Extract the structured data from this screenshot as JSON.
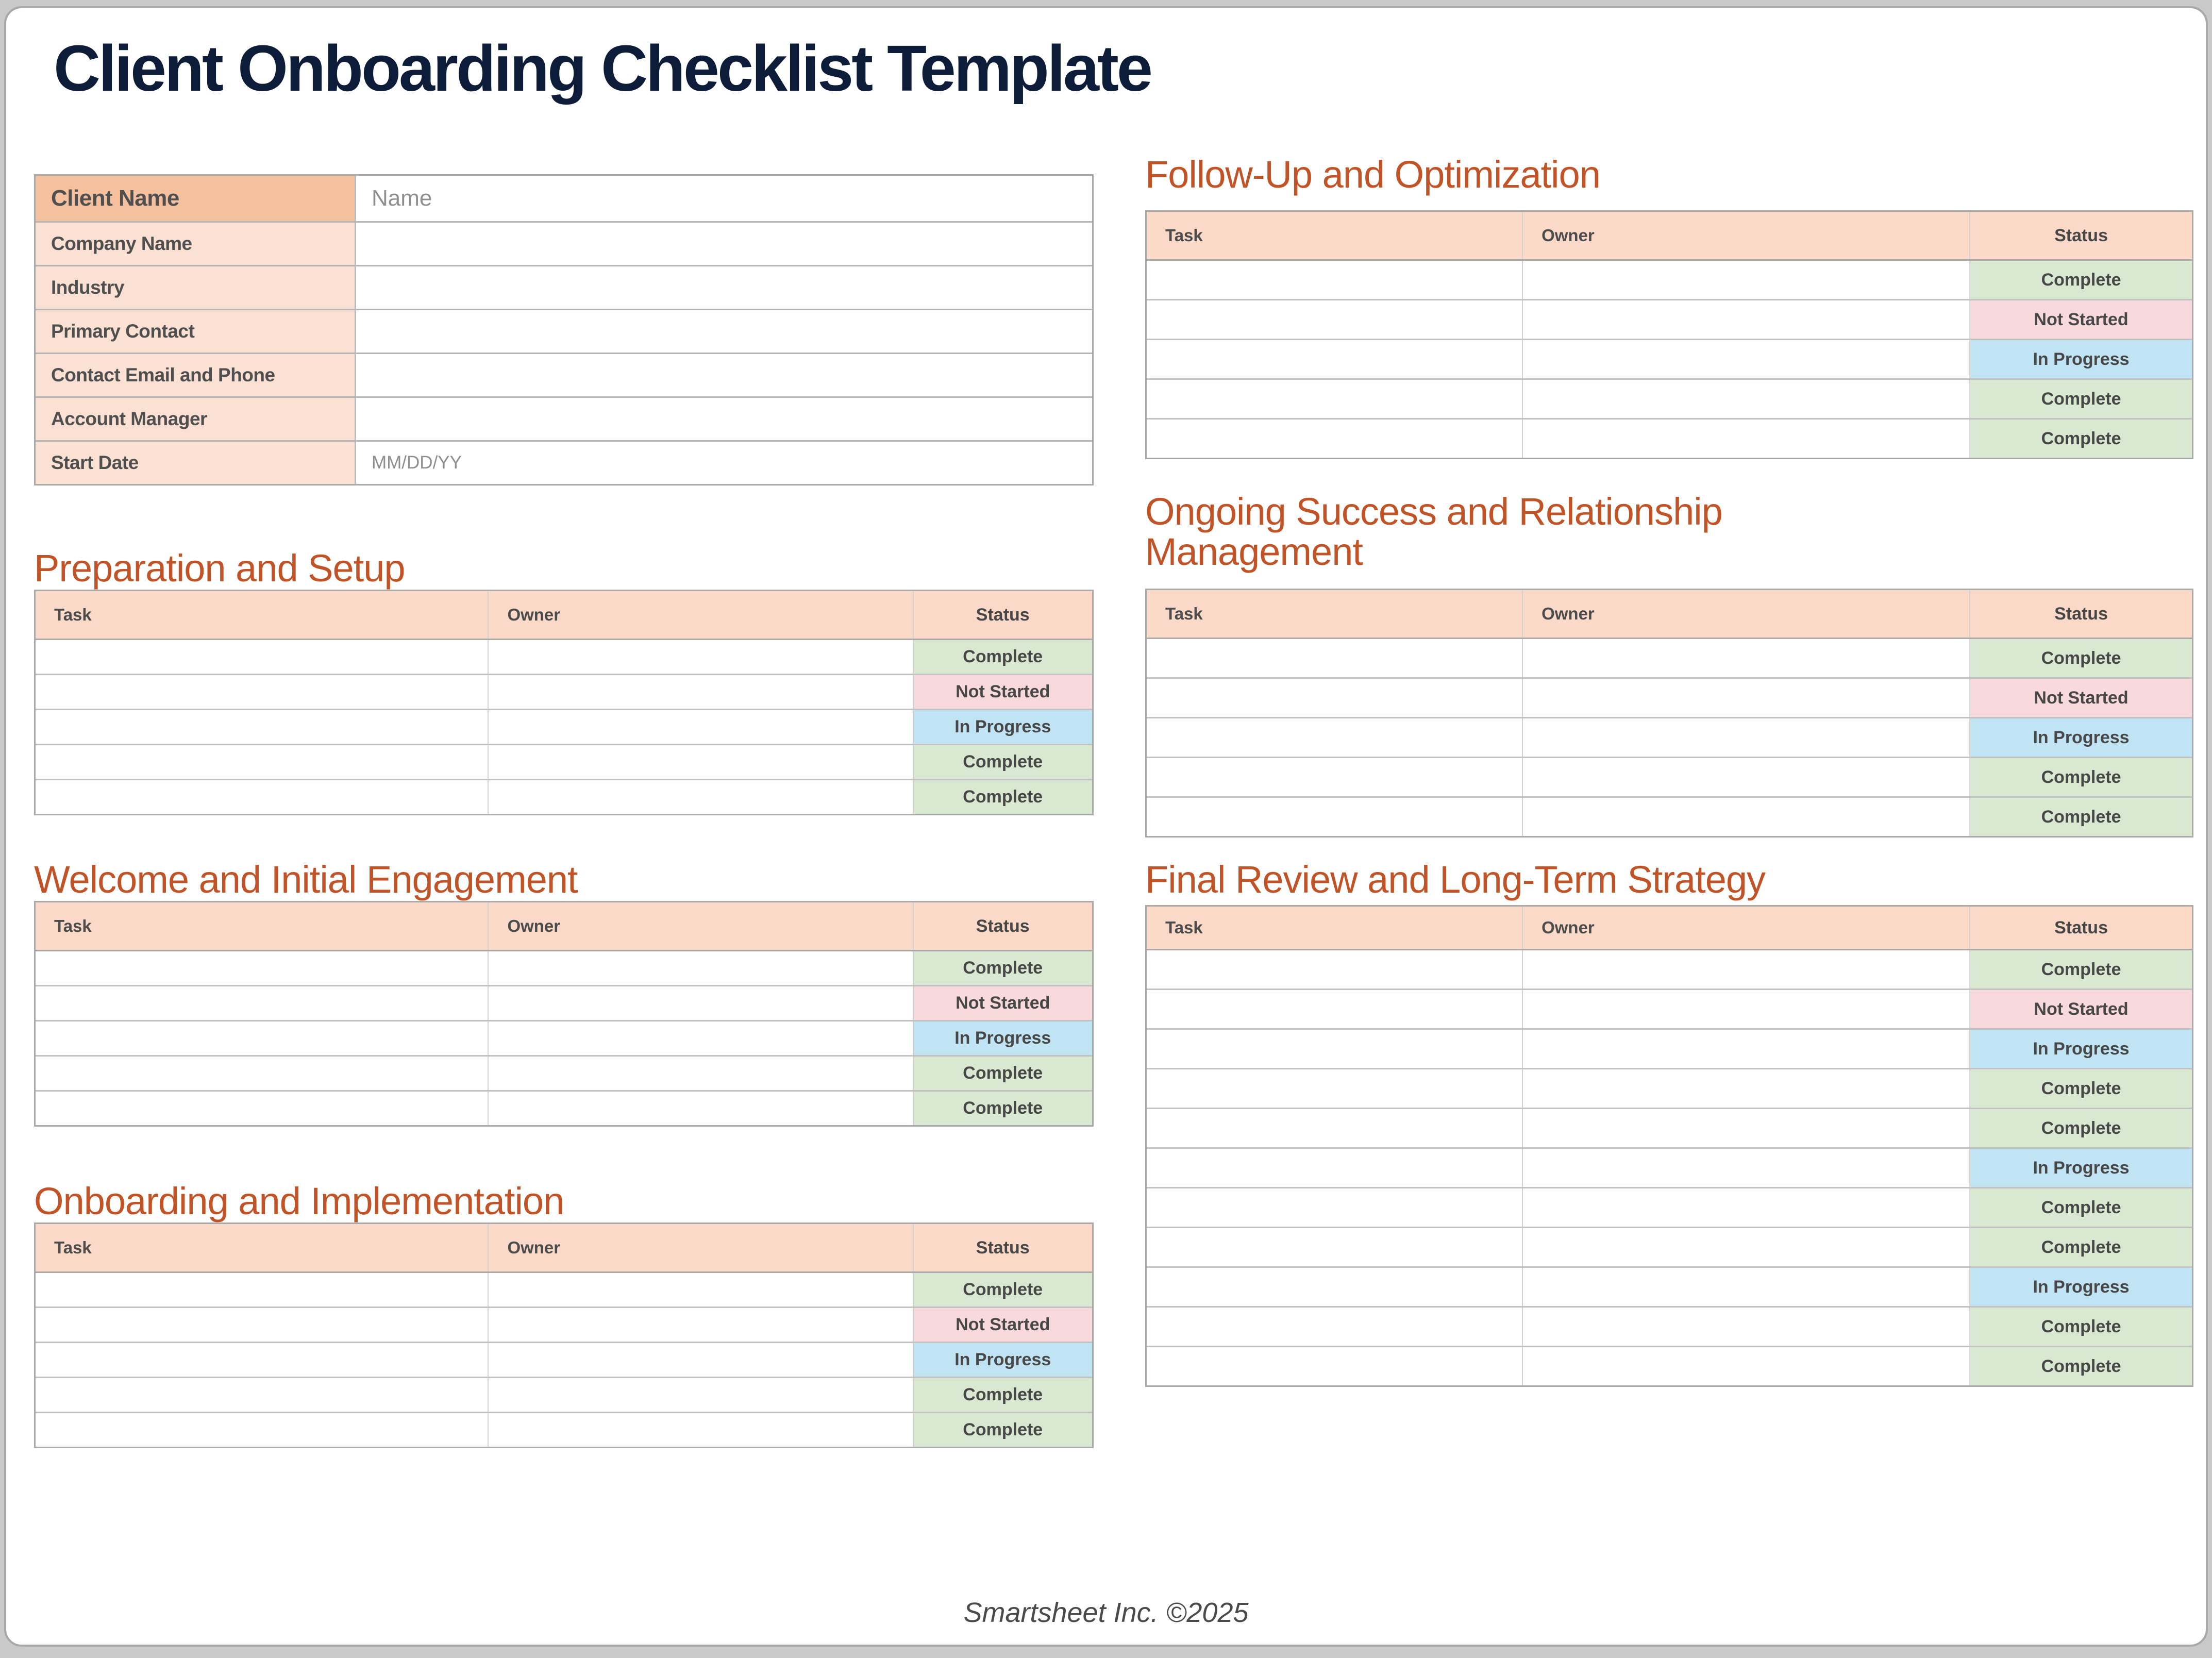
{
  "title": "Client Onboarding Checklist Template",
  "footer": "Smartsheet Inc. ©2025",
  "columns": {
    "task": "Task",
    "owner": "Owner",
    "status": "Status"
  },
  "client_info": {
    "rows": [
      {
        "label": "Client Name",
        "value": "Name"
      },
      {
        "label": "Company Name",
        "value": ""
      },
      {
        "label": "Industry",
        "value": ""
      },
      {
        "label": "Primary Contact",
        "value": ""
      },
      {
        "label": "Contact Email and Phone",
        "value": ""
      },
      {
        "label": "Account Manager",
        "value": ""
      },
      {
        "label": "Start Date",
        "value": "MM/DD/YY"
      }
    ]
  },
  "sections": [
    {
      "id": "preparation",
      "title": "Preparation and Setup",
      "statuses": [
        "Complete",
        "Not Started",
        "In Progress",
        "Complete",
        "Complete"
      ]
    },
    {
      "id": "welcome",
      "title": "Welcome and Initial Engagement",
      "statuses": [
        "Complete",
        "Not Started",
        "In Progress",
        "Complete",
        "Complete"
      ]
    },
    {
      "id": "onboarding",
      "title": "Onboarding and Implementation",
      "statuses": [
        "Complete",
        "Not Started",
        "In Progress",
        "Complete",
        "Complete"
      ]
    },
    {
      "id": "followup",
      "title": "Follow-Up and Optimization",
      "statuses": [
        "Complete",
        "Not Started",
        "In Progress",
        "Complete",
        "Complete"
      ]
    },
    {
      "id": "ongoing",
      "title": "Ongoing Success and Relationship Management",
      "statuses": [
        "Complete",
        "Not Started",
        "In Progress",
        "Complete",
        "Complete"
      ]
    },
    {
      "id": "final",
      "title": "Final Review and Long-Term Strategy",
      "statuses": [
        "Complete",
        "Not Started",
        "In Progress",
        "Complete",
        "Complete",
        "In Progress",
        "Complete",
        "Complete",
        "In Progress",
        "Complete",
        "Complete"
      ]
    }
  ],
  "status_colors": {
    "Complete": "#d9e8d1",
    "Not Started": "#f8d9dc",
    "In Progress": "#c1e4f5"
  },
  "theme": {
    "title_navy": "#0d1c39",
    "accent_orange": "#c25327",
    "table_header_peach": "#fad9c8",
    "client_header_peach": "#f4c09e",
    "client_row_peach": "#fae1d3"
  }
}
